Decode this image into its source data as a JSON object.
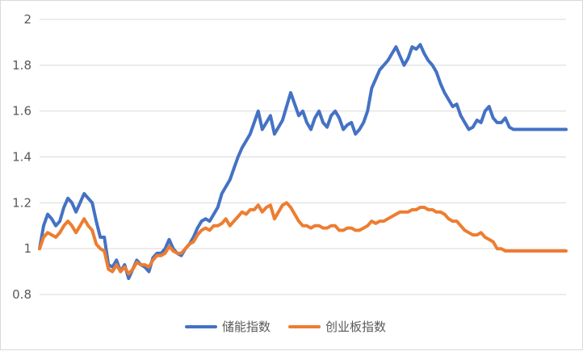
{
  "chart_data": {
    "type": "line",
    "title": "",
    "xlabel": "",
    "ylabel": "",
    "ylim": [
      0.8,
      2.0
    ],
    "yticks": [
      0.8,
      1,
      1.2,
      1.4,
      1.6,
      1.8,
      2
    ],
    "ytick_labels": [
      "0.8",
      "1",
      "1.2",
      "1.4",
      "1.6",
      "1.8",
      "2"
    ],
    "grid": true,
    "legend_position": "bottom",
    "colors": {
      "series1": "#4472C4",
      "series2": "#ED7D31",
      "grid": "#D9D9D9",
      "text": "#595959"
    },
    "x": [
      0,
      5,
      10,
      15,
      20,
      25,
      30,
      35,
      40,
      45,
      50,
      55,
      60,
      65,
      70,
      75,
      80,
      85,
      90,
      95,
      100,
      105,
      110,
      115,
      120,
      125,
      130,
      135,
      140,
      145,
      150,
      155,
      160,
      165,
      170,
      175,
      180,
      185,
      190,
      195,
      200,
      205,
      210,
      215,
      220,
      225,
      230,
      235,
      240,
      245,
      250,
      255,
      260,
      265,
      270,
      275,
      280,
      285,
      290,
      295,
      300,
      305,
      310,
      315,
      320,
      325,
      330,
      335,
      340,
      345,
      350,
      355,
      360,
      365,
      370,
      375,
      380,
      385,
      390,
      395,
      400,
      405,
      410,
      415,
      420,
      425,
      430,
      435,
      440,
      445,
      450,
      455,
      460,
      465,
      470,
      475,
      480,
      485,
      490,
      495,
      500,
      505,
      510,
      515,
      520,
      525,
      530,
      535,
      540,
      545,
      550,
      555,
      560,
      565,
      570,
      575,
      580,
      585,
      590,
      595,
      600,
      605,
      610,
      615,
      620,
      625,
      630,
      635,
      640,
      645,
      650
    ],
    "series": [
      {
        "name": "储能指数",
        "values": [
          1.0,
          1.1,
          1.15,
          1.13,
          1.1,
          1.12,
          1.18,
          1.22,
          1.2,
          1.16,
          1.2,
          1.24,
          1.22,
          1.2,
          1.12,
          1.05,
          1.05,
          0.93,
          0.92,
          0.95,
          0.9,
          0.93,
          0.87,
          0.91,
          0.95,
          0.93,
          0.92,
          0.9,
          0.96,
          0.98,
          0.98,
          1.0,
          1.04,
          1.0,
          0.98,
          0.97,
          1.0,
          1.02,
          1.05,
          1.09,
          1.12,
          1.13,
          1.12,
          1.15,
          1.18,
          1.24,
          1.27,
          1.3,
          1.35,
          1.4,
          1.44,
          1.47,
          1.5,
          1.55,
          1.6,
          1.52,
          1.55,
          1.58,
          1.5,
          1.53,
          1.56,
          1.62,
          1.68,
          1.63,
          1.58,
          1.6,
          1.55,
          1.52,
          1.57,
          1.6,
          1.55,
          1.53,
          1.58,
          1.6,
          1.57,
          1.52,
          1.54,
          1.55,
          1.5,
          1.52,
          1.55,
          1.6,
          1.7,
          1.74,
          1.78,
          1.8,
          1.82,
          1.85,
          1.88,
          1.84,
          1.8,
          1.83,
          1.88,
          1.87,
          1.89,
          1.85,
          1.82,
          1.8,
          1.77,
          1.72,
          1.68,
          1.65,
          1.62,
          1.63,
          1.58,
          1.55,
          1.52,
          1.53,
          1.56,
          1.55,
          1.6,
          1.62,
          1.57,
          1.55,
          1.55,
          1.57,
          1.53,
          1.52,
          1.52,
          1.52,
          1.52,
          1.52,
          1.52,
          1.52,
          1.52,
          1.52,
          1.52,
          1.52,
          1.52,
          1.52,
          1.52
        ]
      },
      {
        "name": "创业板指数",
        "values": [
          1.0,
          1.05,
          1.07,
          1.06,
          1.05,
          1.07,
          1.1,
          1.12,
          1.1,
          1.07,
          1.1,
          1.13,
          1.1,
          1.08,
          1.02,
          1.0,
          0.99,
          0.91,
          0.9,
          0.93,
          0.9,
          0.92,
          0.89,
          0.91,
          0.94,
          0.93,
          0.93,
          0.92,
          0.95,
          0.97,
          0.97,
          0.98,
          1.01,
          0.99,
          0.98,
          0.98,
          1.0,
          1.02,
          1.03,
          1.06,
          1.08,
          1.09,
          1.08,
          1.1,
          1.1,
          1.11,
          1.13,
          1.1,
          1.12,
          1.14,
          1.16,
          1.15,
          1.17,
          1.17,
          1.19,
          1.16,
          1.18,
          1.19,
          1.13,
          1.16,
          1.19,
          1.2,
          1.18,
          1.15,
          1.12,
          1.1,
          1.1,
          1.09,
          1.1,
          1.1,
          1.09,
          1.09,
          1.1,
          1.1,
          1.08,
          1.08,
          1.09,
          1.09,
          1.08,
          1.08,
          1.09,
          1.1,
          1.12,
          1.11,
          1.12,
          1.12,
          1.13,
          1.14,
          1.15,
          1.16,
          1.16,
          1.16,
          1.17,
          1.17,
          1.18,
          1.18,
          1.17,
          1.17,
          1.16,
          1.16,
          1.15,
          1.13,
          1.12,
          1.12,
          1.1,
          1.08,
          1.07,
          1.06,
          1.06,
          1.07,
          1.05,
          1.04,
          1.03,
          1.0,
          1.0,
          0.99,
          0.99,
          0.99,
          0.99,
          0.99,
          0.99,
          0.99,
          0.99,
          0.99,
          0.99,
          0.99,
          0.99,
          0.99,
          0.99,
          0.99,
          0.99
        ]
      }
    ]
  }
}
